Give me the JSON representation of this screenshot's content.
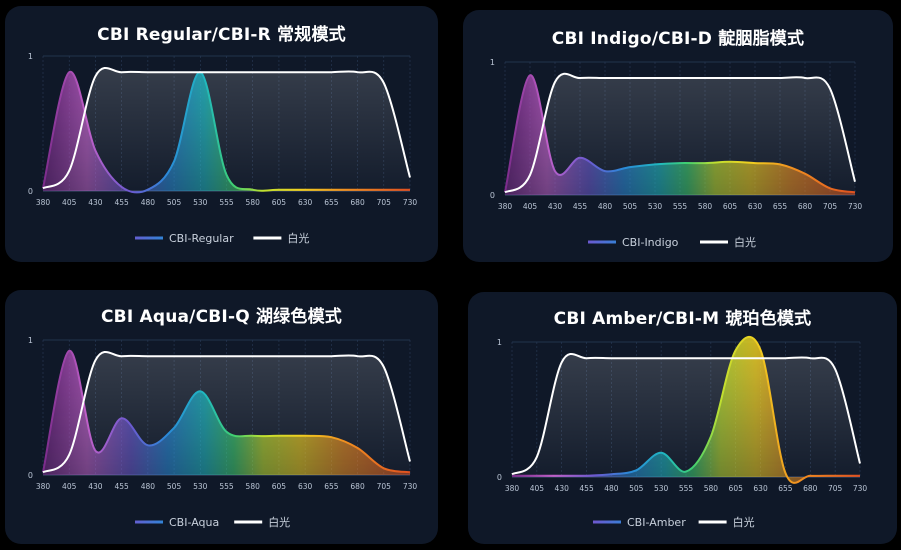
{
  "white_legend": "白光",
  "colors": {
    "background": "#0f1828",
    "white_light": "#ffffff",
    "grid": "#2a3c58",
    "tick_text": "#b9c4d4"
  },
  "chart_data": [
    {
      "type": "line",
      "title": "CBI Regular/CBI-R 常规模式",
      "x": [
        380,
        405,
        430,
        455,
        480,
        505,
        530,
        555,
        580,
        605,
        630,
        655,
        680,
        705,
        730
      ],
      "ylim": [
        0,
        1
      ],
      "yticks": [
        "0",
        "1"
      ],
      "legend": "bottom-center",
      "series": [
        {
          "name": "CBI-Regular",
          "kind": "spectrum",
          "values": [
            0.02,
            0.88,
            0.3,
            0.03,
            0.01,
            0.22,
            0.88,
            0.12,
            0.01,
            0.01,
            0.01,
            0.01,
            0.01,
            0.01,
            0.01
          ]
        },
        {
          "name": "白光",
          "kind": "white",
          "values": [
            0.02,
            0.15,
            0.85,
            0.88,
            0.88,
            0.88,
            0.88,
            0.88,
            0.88,
            0.88,
            0.88,
            0.88,
            0.88,
            0.8,
            0.1
          ]
        }
      ]
    },
    {
      "type": "line",
      "title": "CBI Indigo/CBI-D 靛胭脂模式",
      "x": [
        380,
        405,
        430,
        455,
        480,
        505,
        530,
        555,
        580,
        605,
        630,
        655,
        680,
        705,
        730
      ],
      "ylim": [
        0,
        1
      ],
      "yticks": [
        "0",
        "1"
      ],
      "legend": "bottom-center",
      "series": [
        {
          "name": "CBI-Indigo",
          "kind": "spectrum",
          "values": [
            0.02,
            0.9,
            0.18,
            0.28,
            0.18,
            0.21,
            0.23,
            0.24,
            0.24,
            0.25,
            0.24,
            0.23,
            0.16,
            0.05,
            0.02
          ]
        },
        {
          "name": "白光",
          "kind": "white",
          "values": [
            0.02,
            0.15,
            0.85,
            0.88,
            0.88,
            0.88,
            0.88,
            0.88,
            0.88,
            0.88,
            0.88,
            0.88,
            0.88,
            0.8,
            0.1
          ]
        }
      ]
    },
    {
      "type": "line",
      "title": "CBI Aqua/CBI-Q 湖绿色模式",
      "x": [
        380,
        405,
        430,
        455,
        480,
        505,
        530,
        555,
        580,
        605,
        630,
        655,
        680,
        705,
        730
      ],
      "ylim": [
        0,
        1
      ],
      "yticks": [
        "0",
        "1"
      ],
      "legend": "bottom-center",
      "series": [
        {
          "name": "CBI-Aqua",
          "kind": "spectrum",
          "values": [
            0.02,
            0.92,
            0.18,
            0.42,
            0.22,
            0.35,
            0.62,
            0.32,
            0.29,
            0.29,
            0.29,
            0.28,
            0.2,
            0.05,
            0.02
          ]
        },
        {
          "name": "白光",
          "kind": "white",
          "values": [
            0.02,
            0.15,
            0.85,
            0.88,
            0.88,
            0.88,
            0.88,
            0.88,
            0.88,
            0.88,
            0.88,
            0.88,
            0.88,
            0.8,
            0.1
          ]
        }
      ]
    },
    {
      "type": "line",
      "title": "CBI Amber/CBI-M 琥珀色模式",
      "x": [
        380,
        405,
        430,
        455,
        480,
        505,
        530,
        555,
        580,
        605,
        630,
        655,
        680,
        705,
        730
      ],
      "ylim": [
        0,
        1
      ],
      "yticks": [
        "0",
        "1"
      ],
      "legend": "bottom-center",
      "series": [
        {
          "name": "CBI-Amber",
          "kind": "spectrum",
          "values": [
            0.01,
            0.01,
            0.01,
            0.01,
            0.02,
            0.05,
            0.18,
            0.04,
            0.3,
            0.94,
            0.94,
            0.03,
            0.01,
            0.01,
            0.01
          ]
        },
        {
          "name": "白光",
          "kind": "white",
          "values": [
            0.02,
            0.15,
            0.85,
            0.88,
            0.88,
            0.88,
            0.88,
            0.88,
            0.88,
            0.88,
            0.88,
            0.88,
            0.88,
            0.8,
            0.1
          ]
        }
      ]
    }
  ]
}
